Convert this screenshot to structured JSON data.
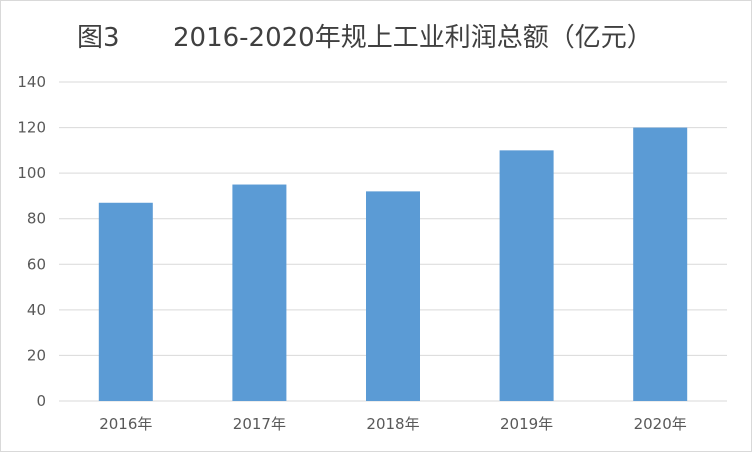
{
  "title": {
    "figure_label": "图3",
    "text": "2016-2020年规上工业利润总额（亿元）"
  },
  "chart_data": {
    "type": "bar",
    "title": "图3 2016-2020年规上工业利润总额（亿元）",
    "categories": [
      "2016年",
      "2017年",
      "2018年",
      "2019年",
      "2020年"
    ],
    "values": [
      87,
      95,
      92,
      110,
      120
    ],
    "ylim": [
      0,
      140
    ],
    "yticks": [
      0,
      20,
      40,
      60,
      80,
      100,
      120,
      140
    ],
    "xlabel": "",
    "ylabel": "",
    "grid": true,
    "legend": "none",
    "bar_color": "#5b9bd5",
    "grid_color": "#d9d9d9"
  }
}
